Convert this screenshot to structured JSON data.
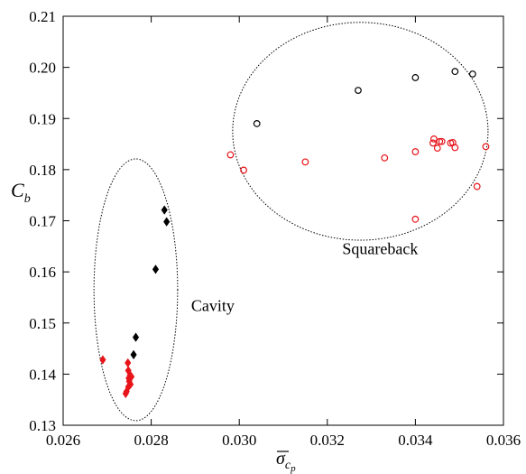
{
  "chart_data": {
    "type": "scatter",
    "xlabel": {
      "main": "σ",
      "sub": "c",
      "subsub": "p"
    },
    "ylabel": {
      "main": "C",
      "sub": "b"
    },
    "xlim": [
      0.026,
      0.036
    ],
    "ylim": [
      0.13,
      0.21
    ],
    "xticks": [
      "0.026",
      "0.028",
      "0.030",
      "0.032",
      "0.034",
      "0.036"
    ],
    "yticks": [
      "0.13",
      "0.14",
      "0.15",
      "0.16",
      "0.17",
      "0.18",
      "0.19",
      "0.20",
      "0.21"
    ],
    "grid": false,
    "colors": {
      "black": "#000000",
      "red": "#e8141a"
    },
    "series": [
      {
        "marker": "open-circle",
        "color": "#000000",
        "points": [
          [
            0.0304,
            0.189
          ],
          [
            0.0327,
            0.1955
          ],
          [
            0.034,
            0.198
          ],
          [
            0.0349,
            0.1992
          ],
          [
            0.0353,
            0.1987
          ]
        ]
      },
      {
        "marker": "open-circle",
        "color": "#e8141a",
        "points": [
          [
            0.0298,
            0.1829
          ],
          [
            0.0301,
            0.1799
          ],
          [
            0.0315,
            0.1815
          ],
          [
            0.0333,
            0.1823
          ],
          [
            0.034,
            0.1835
          ],
          [
            0.034,
            0.1703
          ],
          [
            0.0344,
            0.1852
          ],
          [
            0.03442,
            0.186
          ],
          [
            0.0345,
            0.1842
          ],
          [
            0.03455,
            0.1855
          ],
          [
            0.0346,
            0.1855
          ],
          [
            0.0348,
            0.1852
          ],
          [
            0.0349,
            0.1843
          ],
          [
            0.03485,
            0.1853
          ],
          [
            0.0354,
            0.1767
          ],
          [
            0.0356,
            0.1845
          ]
        ]
      },
      {
        "marker": "filled-diamond",
        "color": "#000000",
        "points": [
          [
            0.0283,
            0.1721
          ],
          [
            0.02835,
            0.1698
          ],
          [
            0.0281,
            0.1605
          ],
          [
            0.02765,
            0.1472
          ],
          [
            0.0276,
            0.1438
          ]
        ]
      },
      {
        "marker": "filled-diamond",
        "color": "#e8141a",
        "points": [
          [
            0.0269,
            0.1428
          ],
          [
            0.02747,
            0.1422
          ],
          [
            0.02748,
            0.1407
          ],
          [
            0.02752,
            0.1398
          ],
          [
            0.02749,
            0.1392
          ],
          [
            0.0275,
            0.1386
          ],
          [
            0.02753,
            0.138
          ],
          [
            0.02748,
            0.1375
          ],
          [
            0.02744,
            0.1366
          ],
          [
            0.02742,
            0.1362
          ],
          [
            0.02755,
            0.1395
          ]
        ]
      }
    ],
    "annotations": [
      {
        "text": "Cavity",
        "x": 0.0294,
        "y": 0.1523
      },
      {
        "text": "Squareback",
        "x": 0.0332,
        "y": 0.1635
      }
    ],
    "ellipses": [
      {
        "cx": 0.02765,
        "cy": 0.1565,
        "rx": 0.00095,
        "ry": 0.0256
      },
      {
        "cx": 0.03275,
        "cy": 0.1875,
        "rx": 0.0029,
        "ry": 0.0213
      }
    ]
  }
}
